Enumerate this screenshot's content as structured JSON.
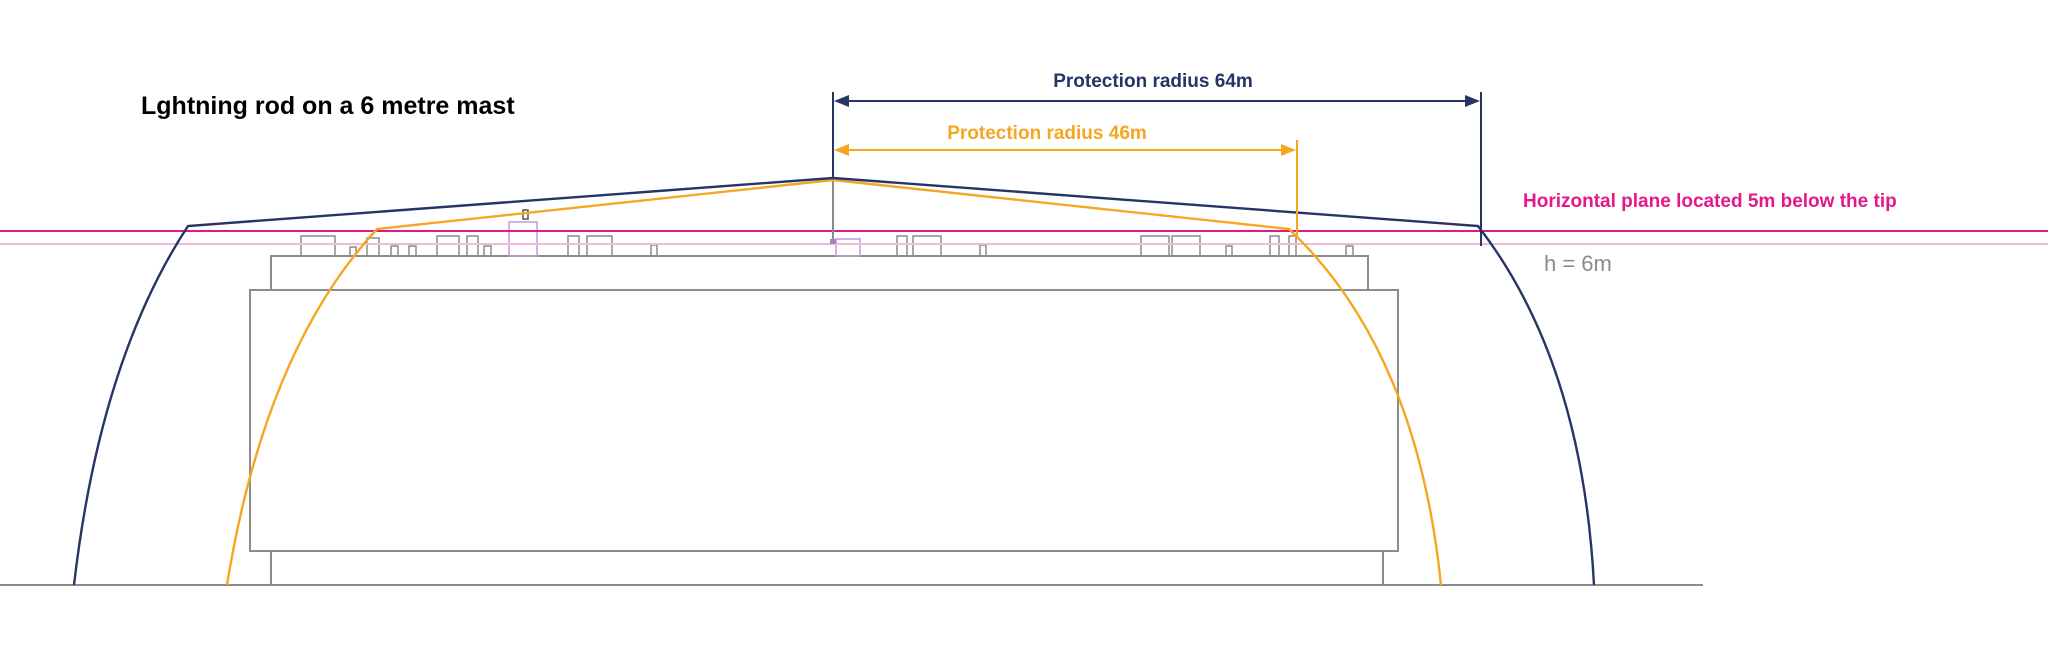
{
  "title": "Lghtning rod on a 6 metre mast",
  "labels": {
    "radius_large": "Protection radius 64m",
    "radius_small": "Protection radius 46m",
    "plane": "Horizontal plane located 5m below the tip",
    "height": "h = 6m"
  },
  "colors": {
    "navy": "#263466",
    "orange": "#f5a623",
    "magenta": "#e5188a",
    "pink_light": "#f5b7dc",
    "gray": "#8c8c8c",
    "black": "#000000"
  }
}
